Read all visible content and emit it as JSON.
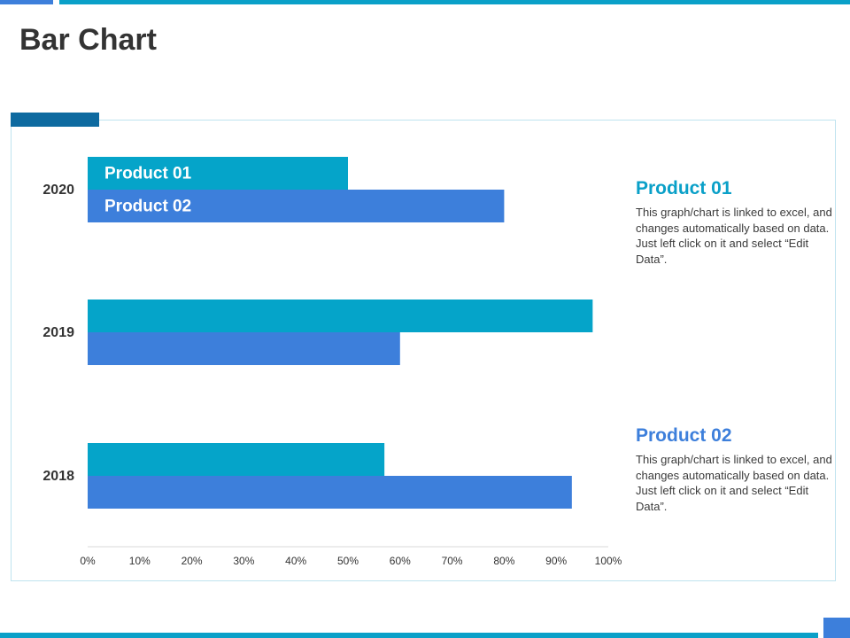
{
  "page": {
    "title": "Bar Chart"
  },
  "colors": {
    "product_01": "#05a4c9",
    "product_02": "#3d7fdb",
    "accent_dark": "#0e6aa0",
    "text_dark": "#333333"
  },
  "chart_data": {
    "type": "bar",
    "orientation": "horizontal",
    "title": "",
    "xlabel": "",
    "ylabel": "",
    "categories": [
      "2020",
      "2019",
      "2018"
    ],
    "series": [
      {
        "name": "Product 01",
        "values": [
          50,
          97,
          57
        ]
      },
      {
        "name": "Product 02",
        "values": [
          80,
          60,
          93
        ]
      }
    ],
    "xlim": [
      0,
      100
    ],
    "x_ticks": [
      "0%",
      "10%",
      "20%",
      "30%",
      "40%",
      "50%",
      "60%",
      "70%",
      "80%",
      "90%",
      "100%"
    ],
    "grid": false,
    "legend": "in-bar labels on top category"
  },
  "sidebar": [
    {
      "heading": "Product 01",
      "text": "This graph/chart is linked to excel, and changes automatically based on data. Just left click on it and select “Edit Data”."
    },
    {
      "heading": "Product 02",
      "text": "This graph/chart is linked to excel, and changes automatically based on data. Just left click on it and select “Edit Data”."
    }
  ]
}
